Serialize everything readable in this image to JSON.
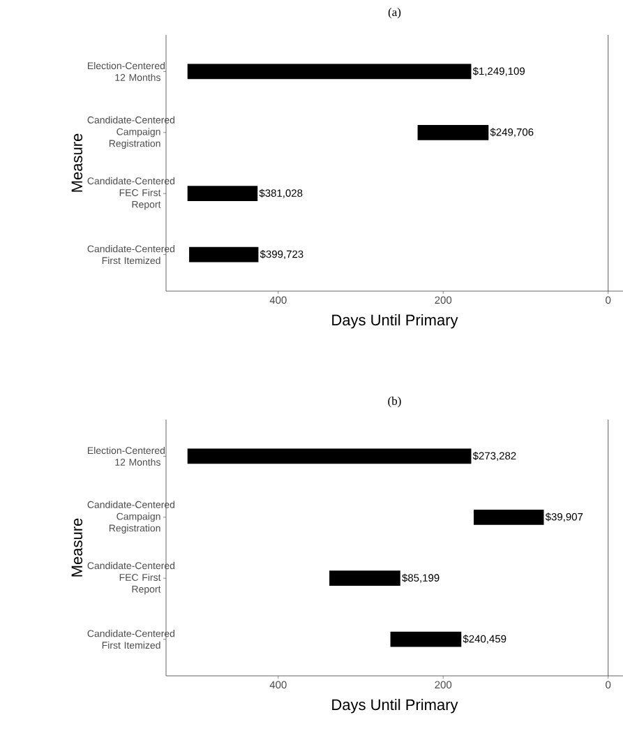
{
  "chart_data": [
    {
      "type": "bar",
      "orientation": "horizontal",
      "title": "(a)",
      "xlabel": "Days Until Primary",
      "ylabel": "Measure",
      "categories": [
        "Election-Centered 12 Months",
        "Candidate-Centered Campaign Registration",
        "Candidate-Centered FEC First Report",
        "Candidate-Centered First Itemized"
      ],
      "base": [
        510,
        231,
        510,
        508
      ],
      "values": [
        -344,
        -86,
        -85,
        -84
      ],
      "color": "#000000",
      "annotations": [
        {
          "text": "$1,249,109",
          "x": 166,
          "y": "Election-Centered 12 Months"
        },
        {
          "text": "$249,706",
          "x": 145,
          "y": "Candidate-Centered Campaign Registration"
        },
        {
          "text": "$381,028",
          "x": 425,
          "y": "Candidate-Centered FEC First Report"
        },
        {
          "text": "$399,723",
          "x": 424,
          "y": "Candidate-Centered First Itemized"
        }
      ],
      "xlim": [
        536,
        -18
      ],
      "xticks": [
        400,
        200,
        0
      ],
      "ref_lines": [
        {
          "axis": "x",
          "value": 0
        }
      ]
    },
    {
      "type": "bar",
      "orientation": "horizontal",
      "title": "(b)",
      "xlabel": "Days Until Primary",
      "ylabel": "Measure",
      "categories": [
        "Election-Centered 12 Months",
        "Candidate-Centered Campaign Registration",
        "Candidate-Centered FEC First Report",
        "Candidate-Centered First Itemized"
      ],
      "base": [
        510,
        163,
        338,
        264
      ],
      "values": [
        -344,
        -85,
        -86,
        -86
      ],
      "color": "#000000",
      "annotations": [
        {
          "text": "$273,282",
          "x": 166,
          "y": "Election-Centered 12 Months"
        },
        {
          "text": "$39,907",
          "x": 78,
          "y": "Candidate-Centered Campaign Registration"
        },
        {
          "text": "$85,199",
          "x": 252,
          "y": "Candidate-Centered FEC First Report"
        },
        {
          "text": "$240,459",
          "x": 178,
          "y": "Candidate-Centered First Itemized"
        }
      ],
      "xlim": [
        536,
        -18
      ],
      "xticks": [
        400,
        200,
        0
      ],
      "ref_lines": [
        {
          "axis": "x",
          "value": 0
        }
      ]
    }
  ]
}
